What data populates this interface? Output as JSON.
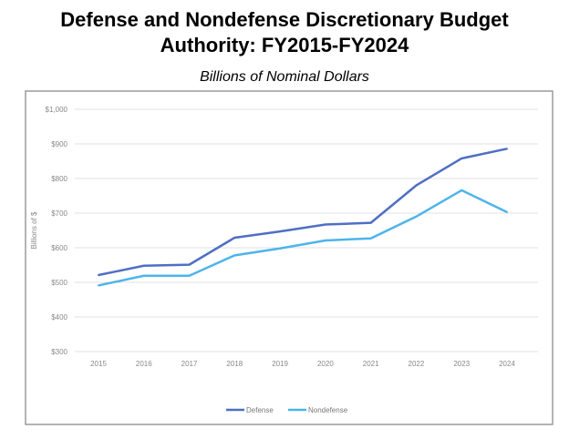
{
  "chart_data": {
    "type": "line",
    "title": "Defense and Nondefense Discretionary Budget Authority: FY2015-FY2024",
    "title_lines": [
      "Defense and Nondefense Discretionary Budget",
      "Authority: FY2015-FY2024"
    ],
    "subtitle": "Billions of Nominal Dollars",
    "xlabel": "",
    "ylabel": "Billions of $",
    "ylim": [
      300,
      1000
    ],
    "yticks": [
      "$300",
      "$400",
      "$500",
      "$600",
      "$700",
      "$800",
      "$900",
      "$1,000"
    ],
    "categories": [
      "2015",
      "2016",
      "2017",
      "2018",
      "2019",
      "2020",
      "2021",
      "2022",
      "2023",
      "2024"
    ],
    "grid": true,
    "legend": "bottom",
    "series": [
      {
        "name": "Defense",
        "color": "#4f6fc4",
        "values": [
          521,
          548,
          551,
          629,
          647,
          667,
          672,
          780,
          858,
          886
        ]
      },
      {
        "name": "Nondefense",
        "color": "#4db4ea",
        "values": [
          491,
          519,
          519,
          578,
          598,
          621,
          627,
          690,
          766,
          703
        ]
      }
    ]
  }
}
